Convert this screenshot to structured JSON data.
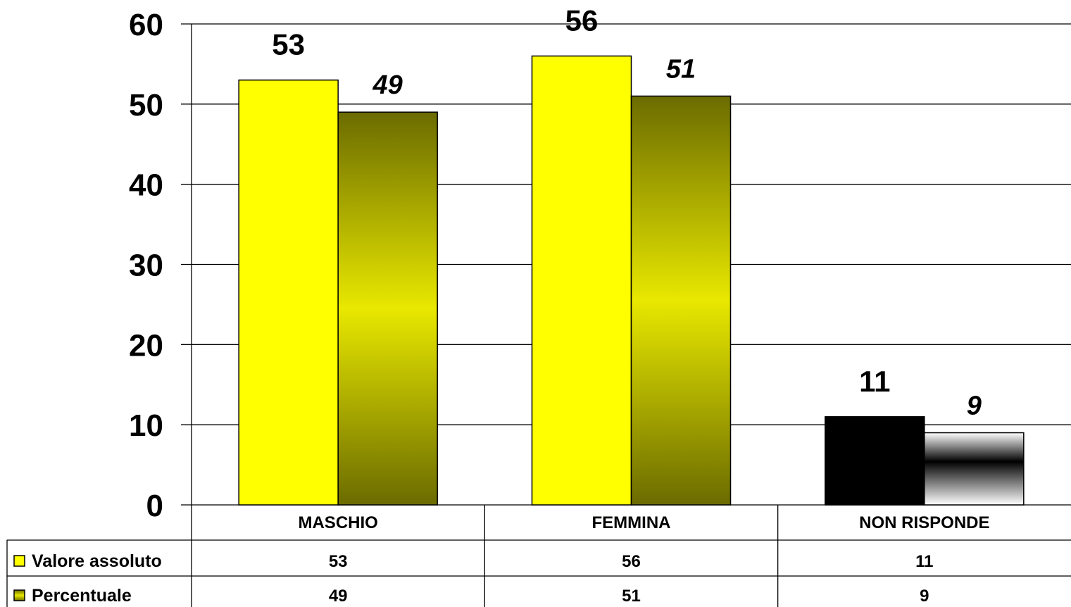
{
  "colors": {
    "valore": "#ffff00",
    "percentuale_dark": "#6b6b00",
    "percentuale_light": "#e8e800",
    "non_risponde_valore": "#000000",
    "non_risponde_percent_dark": "#000000",
    "non_risponde_percent_light": "#ffffff",
    "gridline": "#000000",
    "bar_outline": "#000000"
  },
  "chart_data": {
    "type": "bar",
    "categories": [
      "MASCHIO",
      "FEMMINA",
      "NON RISPONDE"
    ],
    "series": [
      {
        "name": "Valore assoluto",
        "values": [
          53,
          56,
          11
        ],
        "label_style": "bold"
      },
      {
        "name": "Percentuale",
        "values": [
          49,
          51,
          9
        ],
        "label_style": "bold-italic"
      }
    ],
    "ylim": [
      0,
      60
    ],
    "yticks": [
      0,
      10,
      20,
      30,
      40,
      50,
      60
    ],
    "grid": true,
    "data_table": true,
    "legend": "in data table",
    "title": "",
    "xlabel": "",
    "ylabel": ""
  }
}
